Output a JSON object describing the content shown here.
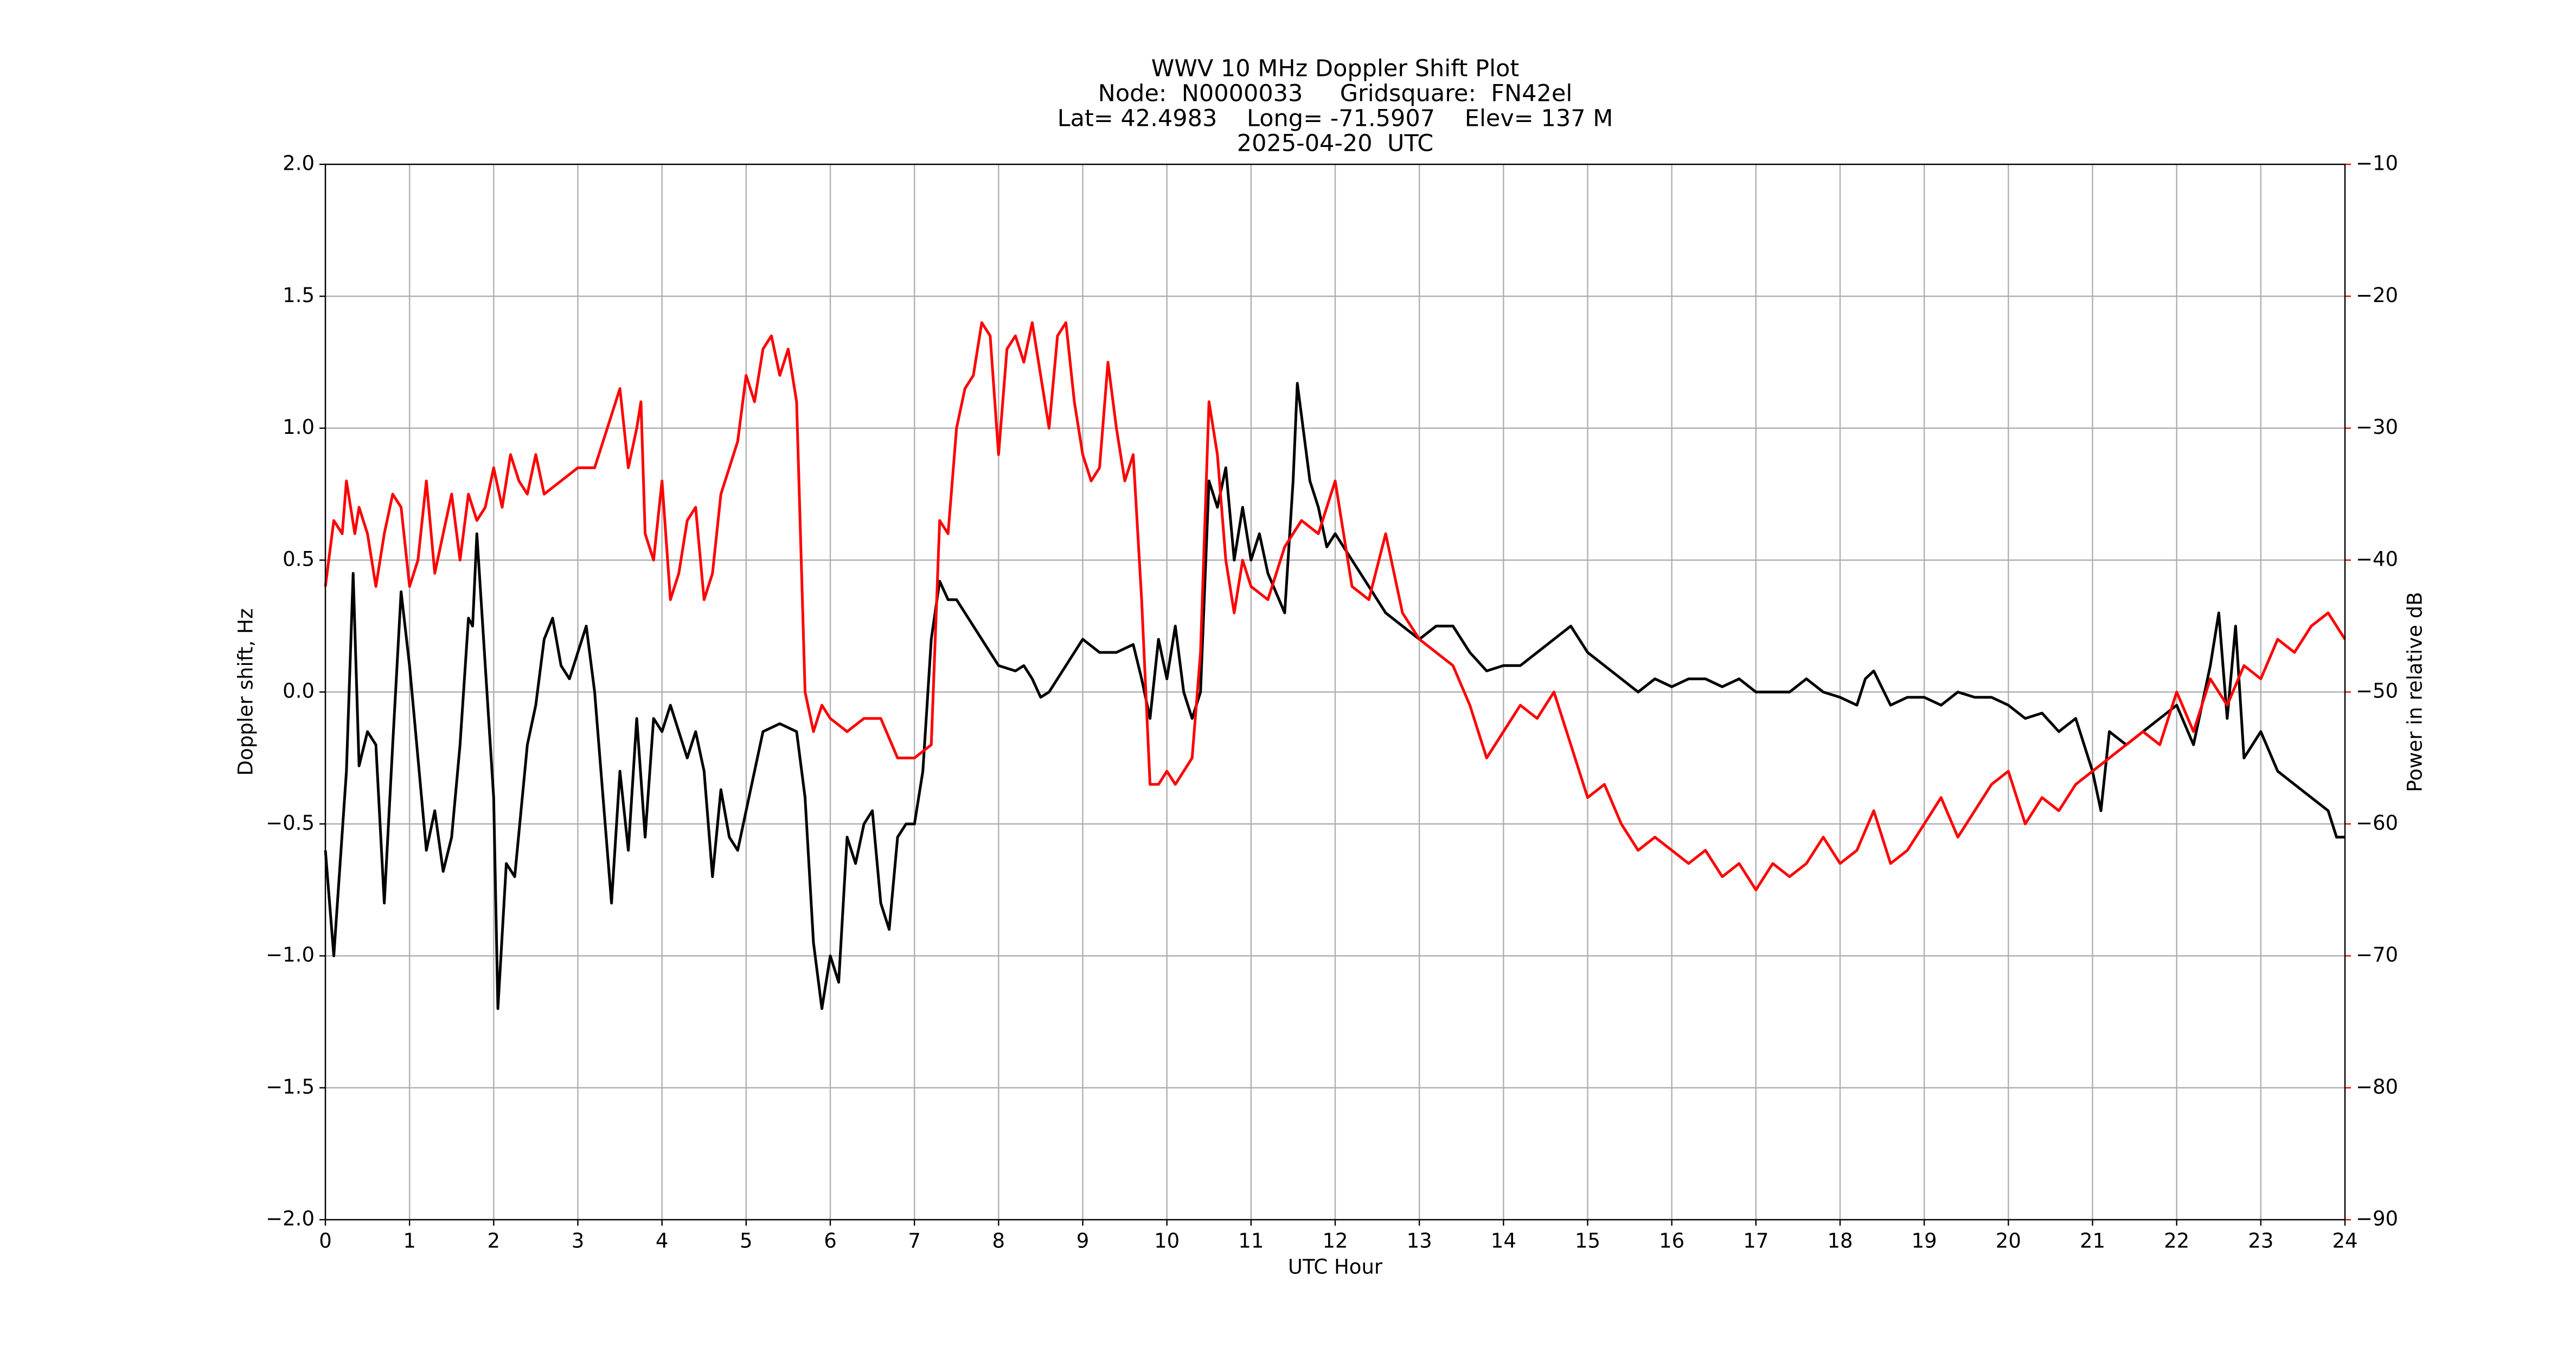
{
  "chart_data": {
    "type": "line",
    "title": "WWV 10 MHz Doppler Shift Plot",
    "subtitle": [
      "Node:  N0000033     Gridsquare:  FN42el",
      "Lat= 42.4983    Long= -71.5907    Elev= 137 M",
      "2025-04-20  UTC"
    ],
    "xlabel": "UTC Hour",
    "ylabel": "Doppler shift, Hz",
    "y2label": "Power in relative dB",
    "y2color": "#ff0000",
    "xlim": [
      0,
      24
    ],
    "xticks": [
      0,
      1,
      2,
      3,
      4,
      5,
      6,
      7,
      8,
      9,
      10,
      11,
      12,
      13,
      14,
      15,
      16,
      17,
      18,
      19,
      20,
      21,
      22,
      23,
      24
    ],
    "ylim": [
      -2,
      2
    ],
    "yticks": [
      {
        "value": -2,
        "label": "−2.0"
      },
      {
        "value": -1.5,
        "label": "−1.5"
      },
      {
        "value": -1,
        "label": "−1.0"
      },
      {
        "value": -0.5,
        "label": "−0.5"
      },
      {
        "value": 0,
        "label": "0.0"
      },
      {
        "value": 0.5,
        "label": "0.5"
      },
      {
        "value": 1,
        "label": "1.0"
      },
      {
        "value": 1.5,
        "label": "1.5"
      },
      {
        "value": 2,
        "label": "2.0"
      }
    ],
    "y2lim": [
      -90,
      -10
    ],
    "y2ticks": [
      {
        "value": -90,
        "label": "−90"
      },
      {
        "value": -80,
        "label": "−80"
      },
      {
        "value": -70,
        "label": "−70"
      },
      {
        "value": -60,
        "label": "−60"
      },
      {
        "value": -50,
        "label": "−50"
      },
      {
        "value": -40,
        "label": "−40"
      },
      {
        "value": -30,
        "label": "−30"
      },
      {
        "value": -20,
        "label": "−20"
      },
      {
        "value": -10,
        "label": "−10"
      }
    ],
    "grid": true,
    "series": [
      {
        "color": "#000000",
        "axis": "y",
        "x": [
          0,
          0.1,
          0.25,
          0.33,
          0.4,
          0.5,
          0.6,
          0.7,
          0.8,
          0.9,
          1,
          1.2,
          1.3,
          1.4,
          1.5,
          1.6,
          1.7,
          1.75,
          1.8,
          1.9,
          2,
          2.05,
          2.15,
          2.25,
          2.4,
          2.5,
          2.6,
          2.7,
          2.8,
          2.9,
          3,
          3.1,
          3.2,
          3.3,
          3.4,
          3.5,
          3.6,
          3.7,
          3.8,
          3.9,
          4,
          4.1,
          4.2,
          4.3,
          4.4,
          4.5,
          4.6,
          4.7,
          4.8,
          4.9,
          5,
          5.2,
          5.4,
          5.6,
          5.7,
          5.8,
          5.9,
          6,
          6.1,
          6.2,
          6.3,
          6.4,
          6.5,
          6.6,
          6.7,
          6.8,
          6.9,
          7,
          7.1,
          7.2,
          7.3,
          7.4,
          7.5,
          7.7,
          7.9,
          8,
          8.2,
          8.3,
          8.4,
          8.5,
          8.6,
          8.8,
          9,
          9.2,
          9.4,
          9.6,
          9.7,
          9.8,
          9.9,
          10,
          10.1,
          10.2,
          10.3,
          10.4,
          10.5,
          10.6,
          10.7,
          10.8,
          10.9,
          11,
          11.1,
          11.2,
          11.4,
          11.5,
          11.55,
          11.7,
          11.8,
          11.9,
          12,
          12.2,
          12.4,
          12.6,
          12.8,
          13,
          13.2,
          13.4,
          13.6,
          13.8,
          14,
          14.2,
          14.4,
          14.6,
          14.8,
          15,
          15.2,
          15.4,
          15.6,
          15.8,
          16,
          16.2,
          16.4,
          16.6,
          16.8,
          17,
          17.2,
          17.4,
          17.6,
          17.8,
          18,
          18.2,
          18.3,
          18.4,
          18.6,
          18.8,
          19,
          19.2,
          19.4,
          19.6,
          19.8,
          20,
          20.2,
          20.4,
          20.6,
          20.8,
          21,
          21.1,
          21.2,
          21.4,
          21.6,
          21.8,
          22,
          22.2,
          22.4,
          22.5,
          22.6,
          22.7,
          22.8,
          23,
          23.2,
          23.4,
          23.6,
          23.8,
          23.9,
          24
        ],
        "values": [
          -0.6,
          -1.0,
          -0.3,
          0.45,
          -0.28,
          -0.15,
          -0.2,
          -0.8,
          -0.2,
          0.38,
          0.1,
          -0.6,
          -0.45,
          -0.68,
          -0.55,
          -0.2,
          0.28,
          0.25,
          0.6,
          0.1,
          -0.4,
          -1.2,
          -0.65,
          -0.7,
          -0.2,
          -0.05,
          0.2,
          0.28,
          0.1,
          0.05,
          0.15,
          0.25,
          0.0,
          -0.4,
          -0.8,
          -0.3,
          -0.6,
          -0.1,
          -0.55,
          -0.1,
          -0.15,
          -0.05,
          -0.15,
          -0.25,
          -0.15,
          -0.3,
          -0.7,
          -0.37,
          -0.55,
          -0.6,
          -0.45,
          -0.15,
          -0.12,
          -0.15,
          -0.4,
          -0.95,
          -1.2,
          -1.0,
          -1.1,
          -0.55,
          -0.65,
          -0.5,
          -0.45,
          -0.8,
          -0.9,
          -0.55,
          -0.5,
          -0.5,
          -0.3,
          0.2,
          0.42,
          0.35,
          0.35,
          0.25,
          0.15,
          0.1,
          0.08,
          0.1,
          0.05,
          -0.02,
          0.0,
          0.1,
          0.2,
          0.15,
          0.15,
          0.18,
          0.05,
          -0.1,
          0.2,
          0.05,
          0.25,
          0.0,
          -0.1,
          0.0,
          0.8,
          0.7,
          0.85,
          0.5,
          0.7,
          0.5,
          0.6,
          0.45,
          0.3,
          0.8,
          1.17,
          0.8,
          0.7,
          0.55,
          0.6,
          0.5,
          0.4,
          0.3,
          0.25,
          0.2,
          0.25,
          0.25,
          0.15,
          0.08,
          0.1,
          0.1,
          0.15,
          0.2,
          0.25,
          0.15,
          0.1,
          0.05,
          0.0,
          0.05,
          0.02,
          0.05,
          0.05,
          0.02,
          0.05,
          0.0,
          0.0,
          0.0,
          0.05,
          0.0,
          -0.02,
          -0.05,
          0.05,
          0.08,
          -0.05,
          -0.02,
          -0.02,
          -0.05,
          0.0,
          -0.02,
          -0.02,
          -0.05,
          -0.1,
          -0.08,
          -0.15,
          -0.1,
          -0.3,
          -0.45,
          -0.15,
          -0.2,
          -0.15,
          -0.1,
          -0.05,
          -0.2,
          0.1,
          0.3,
          -0.1,
          0.25,
          -0.25,
          -0.15,
          -0.3,
          -0.35,
          -0.4,
          -0.45,
          -0.55,
          -0.55
        ]
      },
      {
        "color": "#ff0000",
        "axis": "y2",
        "x": [
          0,
          0.1,
          0.2,
          0.25,
          0.35,
          0.4,
          0.5,
          0.6,
          0.7,
          0.8,
          0.9,
          1,
          1.1,
          1.2,
          1.3,
          1.4,
          1.5,
          1.6,
          1.7,
          1.8,
          1.9,
          2,
          2.1,
          2.2,
          2.3,
          2.4,
          2.5,
          2.6,
          2.8,
          3,
          3.2,
          3.4,
          3.5,
          3.6,
          3.7,
          3.75,
          3.8,
          3.9,
          4,
          4.1,
          4.2,
          4.3,
          4.4,
          4.5,
          4.6,
          4.7,
          4.8,
          4.9,
          5,
          5.1,
          5.2,
          5.3,
          5.4,
          5.5,
          5.6,
          5.7,
          5.8,
          5.9,
          6,
          6.2,
          6.4,
          6.6,
          6.8,
          7,
          7.2,
          7.3,
          7.4,
          7.5,
          7.6,
          7.7,
          7.8,
          7.9,
          8,
          8.1,
          8.2,
          8.3,
          8.4,
          8.5,
          8.6,
          8.7,
          8.8,
          8.9,
          9,
          9.1,
          9.2,
          9.3,
          9.4,
          9.5,
          9.6,
          9.7,
          9.8,
          9.9,
          10,
          10.1,
          10.2,
          10.3,
          10.4,
          10.5,
          10.6,
          10.7,
          10.8,
          10.9,
          11,
          11.2,
          11.4,
          11.6,
          11.8,
          12,
          12.2,
          12.4,
          12.6,
          12.8,
          13,
          13.2,
          13.4,
          13.6,
          13.8,
          14,
          14.2,
          14.4,
          14.6,
          14.8,
          15,
          15.2,
          15.4,
          15.6,
          15.8,
          16,
          16.2,
          16.4,
          16.6,
          16.8,
          17,
          17.2,
          17.4,
          17.6,
          17.8,
          18,
          18.2,
          18.4,
          18.6,
          18.8,
          19,
          19.2,
          19.4,
          19.6,
          19.8,
          20,
          20.2,
          20.4,
          20.6,
          20.8,
          21,
          21.2,
          21.4,
          21.6,
          21.8,
          22,
          22.2,
          22.4,
          22.6,
          22.8,
          23,
          23.2,
          23.4,
          23.6,
          23.8,
          24
        ],
        "values": [
          -42,
          -37,
          -38,
          -34,
          -38,
          -36,
          -38,
          -42,
          -38,
          -35,
          -36,
          -42,
          -40,
          -34,
          -41,
          -38,
          -35,
          -40,
          -35,
          -37,
          -36,
          -33,
          -36,
          -32,
          -34,
          -35,
          -32,
          -35,
          -34,
          -33,
          -33,
          -29,
          -27,
          -33,
          -30,
          -28,
          -38,
          -40,
          -34,
          -43,
          -41,
          -37,
          -36,
          -43,
          -41,
          -35,
          -33,
          -31,
          -26,
          -28,
          -24,
          -23,
          -26,
          -24,
          -28,
          -50,
          -53,
          -51,
          -52,
          -53,
          -52,
          -52,
          -55,
          -55,
          -54,
          -37,
          -38,
          -30,
          -27,
          -26,
          -22,
          -23,
          -32,
          -24,
          -23,
          -25,
          -22,
          -26,
          -30,
          -23,
          -22,
          -28,
          -32,
          -34,
          -33,
          -25,
          -30,
          -34,
          -32,
          -43,
          -57,
          -57,
          -56,
          -57,
          -56,
          -55,
          -47,
          -28,
          -32,
          -40,
          -44,
          -40,
          -42,
          -43,
          -39,
          -37,
          -38,
          -34,
          -42,
          -43,
          -38,
          -44,
          -46,
          -47,
          -48,
          -51,
          -55,
          -53,
          -51,
          -52,
          -50,
          -54,
          -58,
          -57,
          -60,
          -62,
          -61,
          -62,
          -63,
          -62,
          -64,
          -63,
          -65,
          -63,
          -64,
          -63,
          -61,
          -63,
          -62,
          -59,
          -63,
          -62,
          -60,
          -58,
          -61,
          -59,
          -57,
          -56,
          -60,
          -58,
          -59,
          -57,
          -56,
          -55,
          -54,
          -53,
          -54,
          -50,
          -53,
          -49,
          -51,
          -48,
          -49,
          -46,
          -47,
          -45,
          -44,
          -46
        ]
      }
    ]
  }
}
